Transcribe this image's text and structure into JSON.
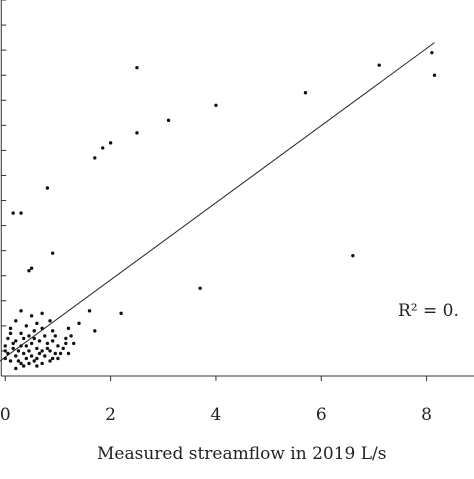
{
  "chart_data": {
    "type": "scatter",
    "xlabel": "Measured streamflow in 2019  L/s",
    "annotation": "R² = 0.",
    "x_ticks": [
      {
        "value": 0,
        "label": "0"
      },
      {
        "value": 2,
        "label": "2"
      },
      {
        "value": 4,
        "label": "4"
      },
      {
        "value": 6,
        "label": "6"
      },
      {
        "value": 8,
        "label": "8"
      }
    ],
    "xlim": [
      -0.1,
      8.9
    ],
    "ylim": [
      0,
      15
    ],
    "y_tick_values": [
      1,
      2,
      3,
      4,
      5,
      6,
      7,
      8,
      9,
      10,
      11,
      12,
      13,
      14,
      15
    ],
    "trendline": {
      "x0": -0.1,
      "y0": 0.6,
      "x1": 8.15,
      "y1": 13.3
    },
    "points": [
      {
        "x": 2.5,
        "y": 12.3
      },
      {
        "x": 7.1,
        "y": 12.4
      },
      {
        "x": 8.1,
        "y": 12.9
      },
      {
        "x": 8.15,
        "y": 12.0
      },
      {
        "x": 5.7,
        "y": 11.3
      },
      {
        "x": 4.0,
        "y": 10.8
      },
      {
        "x": 3.1,
        "y": 10.2
      },
      {
        "x": 2.5,
        "y": 9.7
      },
      {
        "x": 2.0,
        "y": 9.3
      },
      {
        "x": 1.85,
        "y": 9.1
      },
      {
        "x": 1.7,
        "y": 8.7
      },
      {
        "x": 0.8,
        "y": 7.5
      },
      {
        "x": 0.15,
        "y": 6.5
      },
      {
        "x": 0.3,
        "y": 6.5
      },
      {
        "x": 0.9,
        "y": 4.9
      },
      {
        "x": 0.5,
        "y": 4.3
      },
      {
        "x": 0.45,
        "y": 4.2
      },
      {
        "x": 6.6,
        "y": 4.8
      },
      {
        "x": 3.7,
        "y": 3.5
      },
      {
        "x": 1.6,
        "y": 2.6
      },
      {
        "x": 2.2,
        "y": 2.5
      },
      {
        "x": 1.4,
        "y": 2.1
      },
      {
        "x": 1.2,
        "y": 1.9
      },
      {
        "x": 1.7,
        "y": 1.8
      },
      {
        "x": 0.9,
        "y": 1.8
      },
      {
        "x": 1.15,
        "y": 1.5
      },
      {
        "x": 1.3,
        "y": 1.3
      },
      {
        "x": 0.3,
        "y": 2.6
      },
      {
        "x": 0.5,
        "y": 2.4
      },
      {
        "x": 0.7,
        "y": 2.5
      },
      {
        "x": 0.2,
        "y": 2.2
      },
      {
        "x": 0.6,
        "y": 2.1
      },
      {
        "x": 0.4,
        "y": 2.0
      },
      {
        "x": 0.85,
        "y": 2.2
      },
      {
        "x": 0.1,
        "y": 1.9
      },
      {
        "x": 0.3,
        "y": 1.7
      },
      {
        "x": 0.55,
        "y": 1.8
      },
      {
        "x": 0.75,
        "y": 1.6
      },
      {
        "x": 0.95,
        "y": 1.6
      },
      {
        "x": 0.05,
        "y": 1.5
      },
      {
        "x": 0.2,
        "y": 1.4
      },
      {
        "x": 0.35,
        "y": 1.5
      },
      {
        "x": 0.5,
        "y": 1.3
      },
      {
        "x": 0.65,
        "y": 1.4
      },
      {
        "x": 0.8,
        "y": 1.3
      },
      {
        "x": 1.0,
        "y": 1.2
      },
      {
        "x": 1.1,
        "y": 1.1
      },
      {
        "x": 0.0,
        "y": 1.2
      },
      {
        "x": 0.15,
        "y": 1.1
      },
      {
        "x": 0.3,
        "y": 1.2
      },
      {
        "x": 0.45,
        "y": 1.0
      },
      {
        "x": 0.6,
        "y": 1.1
      },
      {
        "x": 0.7,
        "y": 1.0
      },
      {
        "x": 0.85,
        "y": 1.0
      },
      {
        "x": 0.95,
        "y": 0.9
      },
      {
        "x": 1.05,
        "y": 0.9
      },
      {
        "x": 1.2,
        "y": 0.9
      },
      {
        "x": 0.05,
        "y": 0.9
      },
      {
        "x": 0.2,
        "y": 0.8
      },
      {
        "x": 0.35,
        "y": 0.9
      },
      {
        "x": 0.5,
        "y": 0.8
      },
      {
        "x": 0.6,
        "y": 0.7
      },
      {
        "x": 0.75,
        "y": 0.8
      },
      {
        "x": 0.9,
        "y": 0.7
      },
      {
        "x": 1.0,
        "y": 0.7
      },
      {
        "x": 0.1,
        "y": 0.6
      },
      {
        "x": 0.25,
        "y": 0.6
      },
      {
        "x": 0.4,
        "y": 0.7
      },
      {
        "x": 0.55,
        "y": 0.6
      },
      {
        "x": 0.7,
        "y": 0.5
      },
      {
        "x": 0.85,
        "y": 0.6
      },
      {
        "x": 0.3,
        "y": 0.5
      },
      {
        "x": 0.45,
        "y": 0.5
      },
      {
        "x": 0.0,
        "y": 0.7
      },
      {
        "x": 0.65,
        "y": 0.9
      },
      {
        "x": 0.15,
        "y": 1.3
      },
      {
        "x": 0.4,
        "y": 1.2
      },
      {
        "x": 0.8,
        "y": 1.1
      },
      {
        "x": 1.15,
        "y": 1.3
      },
      {
        "x": 0.25,
        "y": 1.0
      },
      {
        "x": 0.55,
        "y": 1.5
      },
      {
        "x": 0.9,
        "y": 1.4
      },
      {
        "x": 0.1,
        "y": 1.7
      },
      {
        "x": 0.7,
        "y": 1.9
      },
      {
        "x": 0.35,
        "y": 0.4
      },
      {
        "x": 0.6,
        "y": 0.4
      },
      {
        "x": 0.2,
        "y": 0.3
      },
      {
        "x": 1.25,
        "y": 1.6
      },
      {
        "x": 0.45,
        "y": 1.6
      },
      {
        "x": 0.0,
        "y": 1.0
      }
    ]
  }
}
